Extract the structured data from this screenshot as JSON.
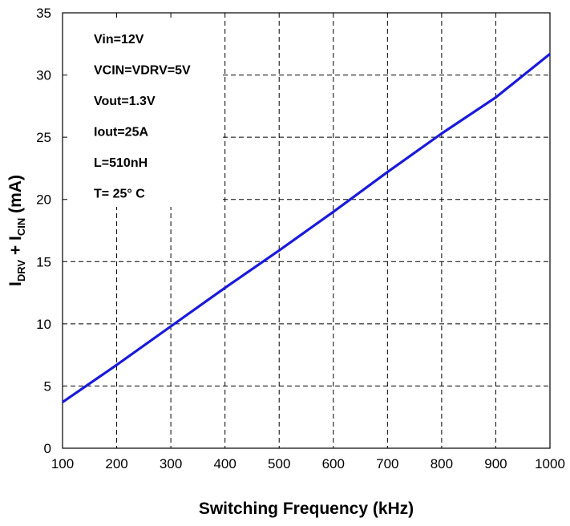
{
  "chart_data": {
    "type": "line",
    "xlabel": "Switching Frequency (kHz)",
    "ylabel": {
      "parts": [
        {
          "text": "I",
          "sub": false
        },
        {
          "text": "DRV",
          "sub": true
        },
        {
          "text": " + I",
          "sub": false
        },
        {
          "text": "CIN",
          "sub": true
        },
        {
          "text": " (mA)",
          "sub": false
        }
      ]
    },
    "xlim": [
      100,
      1000
    ],
    "ylim": [
      0,
      35
    ],
    "xticks": [
      "100",
      "200",
      "300",
      "400",
      "500",
      "600",
      "700",
      "800",
      "900",
      "1000"
    ],
    "yticks": [
      "0",
      "5",
      "10",
      "15",
      "20",
      "25",
      "30",
      "35"
    ],
    "grid": true,
    "annotations": [
      "Vin=12V",
      "VCIN=VDRV=5V",
      "Vout=1.3V",
      "Iout=25A",
      "L=510nH",
      "T= 25° C"
    ],
    "series": [
      {
        "color": "#1a1adc",
        "x": [
          100,
          200,
          300,
          400,
          500,
          600,
          700,
          800,
          900,
          1000
        ],
        "y": [
          3.7,
          6.7,
          9.8,
          12.9,
          15.9,
          19.0,
          22.2,
          25.3,
          28.2,
          31.7
        ]
      }
    ]
  }
}
